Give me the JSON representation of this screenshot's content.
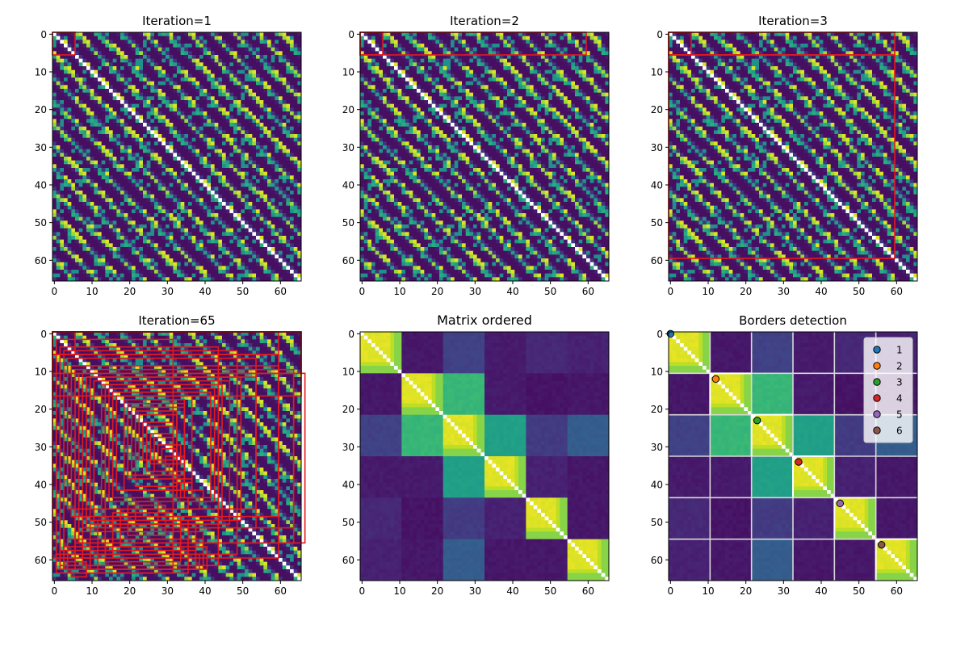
{
  "chart_data": [
    {
      "type": "heatmap",
      "title": "Iteration=1",
      "size": 66,
      "xticks": [
        0,
        10,
        20,
        30,
        40,
        50,
        60
      ],
      "yticks": [
        0,
        10,
        20,
        30,
        40,
        50,
        60
      ],
      "colormap": "viridis",
      "matrix": "shuffled-similarity",
      "boxes": [
        [
          0,
          0,
          6,
          6
        ]
      ],
      "box_color": "#e41a1c"
    },
    {
      "type": "heatmap",
      "title": "Iteration=2",
      "size": 66,
      "xticks": [
        0,
        10,
        20,
        30,
        40,
        50,
        60
      ],
      "yticks": [
        0,
        10,
        20,
        30,
        40,
        50,
        60
      ],
      "colormap": "viridis",
      "matrix": "shuffled-similarity",
      "boxes": [
        [
          0,
          0,
          6,
          6
        ],
        [
          0,
          0,
          60,
          6
        ]
      ],
      "box_color": "#e41a1c"
    },
    {
      "type": "heatmap",
      "title": "Iteration=3",
      "size": 66,
      "xticks": [
        0,
        10,
        20,
        30,
        40,
        50,
        60
      ],
      "yticks": [
        0,
        10,
        20,
        30,
        40,
        50,
        60
      ],
      "colormap": "viridis",
      "matrix": "shuffled-similarity",
      "boxes": [
        [
          0,
          0,
          6,
          6
        ],
        [
          0,
          0,
          60,
          6
        ],
        [
          0,
          6,
          60,
          54
        ]
      ],
      "box_color": "#e41a1c"
    },
    {
      "type": "heatmap",
      "title": "Iteration=65",
      "size": 66,
      "xticks": [
        0,
        10,
        20,
        30,
        40,
        50,
        60
      ],
      "yticks": [
        0,
        10,
        20,
        30,
        40,
        50,
        60
      ],
      "colormap": "viridis",
      "matrix": "shuffled-similarity",
      "boxes": [
        [
          0,
          0,
          6,
          6
        ],
        [
          0,
          0,
          60,
          6
        ],
        [
          0,
          6,
          60,
          54
        ],
        [
          1,
          2,
          31,
          62
        ],
        [
          2,
          4,
          42,
          58
        ],
        [
          3,
          5,
          46,
          54
        ],
        [
          4,
          7,
          50,
          40
        ],
        [
          5,
          9,
          55,
          40
        ],
        [
          6,
          10,
          58,
          46
        ],
        [
          7,
          11,
          60,
          45
        ],
        [
          8,
          11,
          56,
          41
        ],
        [
          9,
          12,
          45,
          40
        ],
        [
          10,
          12,
          40,
          38
        ],
        [
          11,
          13,
          36,
          38
        ],
        [
          13,
          14,
          32,
          36
        ],
        [
          14,
          14,
          30,
          38
        ],
        [
          15,
          15,
          28,
          30
        ],
        [
          16,
          16,
          26,
          28
        ],
        [
          17,
          17,
          20,
          25
        ],
        [
          19,
          18,
          16,
          24
        ],
        [
          20,
          19,
          15,
          20
        ],
        [
          21,
          20,
          14,
          18
        ],
        [
          22,
          21,
          11,
          20
        ],
        [
          23,
          22,
          10,
          12
        ],
        [
          24,
          24,
          8,
          10
        ],
        [
          25,
          25,
          7,
          12
        ],
        [
          26,
          27,
          6,
          8
        ],
        [
          27,
          28,
          5,
          9
        ],
        [
          28,
          30,
          6,
          5
        ],
        [
          29,
          31,
          4,
          4
        ],
        [
          30,
          33,
          5,
          4
        ],
        [
          31,
          35,
          4,
          3
        ],
        [
          32,
          37,
          3,
          3
        ],
        [
          33,
          39,
          4,
          5
        ],
        [
          34,
          40,
          3,
          4
        ],
        [
          35,
          42,
          5,
          2
        ],
        [
          36,
          44,
          3,
          3
        ],
        [
          22,
          45,
          6,
          6
        ],
        [
          20,
          46,
          10,
          8
        ],
        [
          18,
          47,
          14,
          10
        ],
        [
          16,
          48,
          16,
          12
        ],
        [
          14,
          49,
          20,
          12
        ],
        [
          12,
          50,
          24,
          14
        ],
        [
          10,
          51,
          28,
          12
        ],
        [
          8,
          52,
          30,
          10
        ],
        [
          6,
          53,
          34,
          10
        ],
        [
          4,
          55,
          36,
          8
        ],
        [
          3,
          57,
          38,
          6
        ],
        [
          2,
          58,
          36,
          5
        ],
        [
          1,
          59,
          38,
          4
        ],
        [
          2,
          60,
          8,
          3
        ],
        [
          3,
          61,
          6,
          2
        ],
        [
          4,
          62,
          5,
          2
        ],
        [
          5,
          63,
          4,
          2
        ],
        [
          0,
          0,
          66,
          17
        ],
        [
          0,
          0,
          66,
          11
        ]
      ],
      "box_color": "#e41a1c"
    },
    {
      "type": "heatmap",
      "title": "Matrix ordered",
      "size": 66,
      "xticks": [
        0,
        10,
        20,
        30,
        40,
        50,
        60
      ],
      "yticks": [
        0,
        10,
        20,
        30,
        40,
        50,
        60
      ],
      "colormap": "viridis",
      "matrix": "ordered-blocks",
      "block_bounds": [
        0,
        11,
        22,
        33,
        44,
        55,
        66
      ],
      "off_block_values": [
        [
          0,
          0.05,
          0.18,
          0.06,
          0.1,
          0.08
        ],
        [
          0.05,
          0,
          0.65,
          0.06,
          0.04,
          0.05
        ],
        [
          0.18,
          0.65,
          0,
          0.55,
          0.16,
          0.28
        ],
        [
          0.06,
          0.06,
          0.55,
          0,
          0.08,
          0.05
        ],
        [
          0.1,
          0.04,
          0.16,
          0.08,
          0,
          0.05
        ],
        [
          0.08,
          0.05,
          0.28,
          0.05,
          0.05,
          0
        ]
      ]
    },
    {
      "type": "heatmap",
      "title": "Borders detection",
      "size": 66,
      "xticks": [
        0,
        10,
        20,
        30,
        40,
        50,
        60
      ],
      "yticks": [
        0,
        10,
        20,
        30,
        40,
        50,
        60
      ],
      "colormap": "viridis",
      "matrix": "ordered-blocks",
      "block_bounds": [
        0,
        11,
        22,
        33,
        44,
        55,
        66
      ],
      "off_block_values": [
        [
          0,
          0.05,
          0.18,
          0.06,
          0.1,
          0.08
        ],
        [
          0.05,
          0,
          0.65,
          0.06,
          0.04,
          0.05
        ],
        [
          0.18,
          0.65,
          0,
          0.55,
          0.16,
          0.28
        ],
        [
          0.06,
          0.06,
          0.55,
          0,
          0.08,
          0.05
        ],
        [
          0.1,
          0.04,
          0.16,
          0.08,
          0,
          0.05
        ],
        [
          0.08,
          0.05,
          0.28,
          0.05,
          0.05,
          0
        ]
      ],
      "border_lines": [
        11,
        22,
        33,
        44,
        55
      ],
      "border_points": [
        {
          "label": "1",
          "x": 0,
          "y": 0,
          "color": "#1f77b4"
        },
        {
          "label": "2",
          "x": 12,
          "y": 12,
          "color": "#ff7f0e"
        },
        {
          "label": "3",
          "x": 23,
          "y": 23,
          "color": "#2ca02c"
        },
        {
          "label": "4",
          "x": 34,
          "y": 34,
          "color": "#d62728"
        },
        {
          "label": "5",
          "x": 45,
          "y": 45,
          "color": "#9467bd"
        },
        {
          "label": "6",
          "x": 56,
          "y": 56,
          "color": "#8c564b"
        }
      ],
      "legend": {
        "entries": [
          "1",
          "2",
          "3",
          "4",
          "5",
          "6"
        ],
        "colors": [
          "#1f77b4",
          "#ff7f0e",
          "#2ca02c",
          "#d62728",
          "#9467bd",
          "#8c564b"
        ],
        "location": "upper right"
      }
    }
  ]
}
